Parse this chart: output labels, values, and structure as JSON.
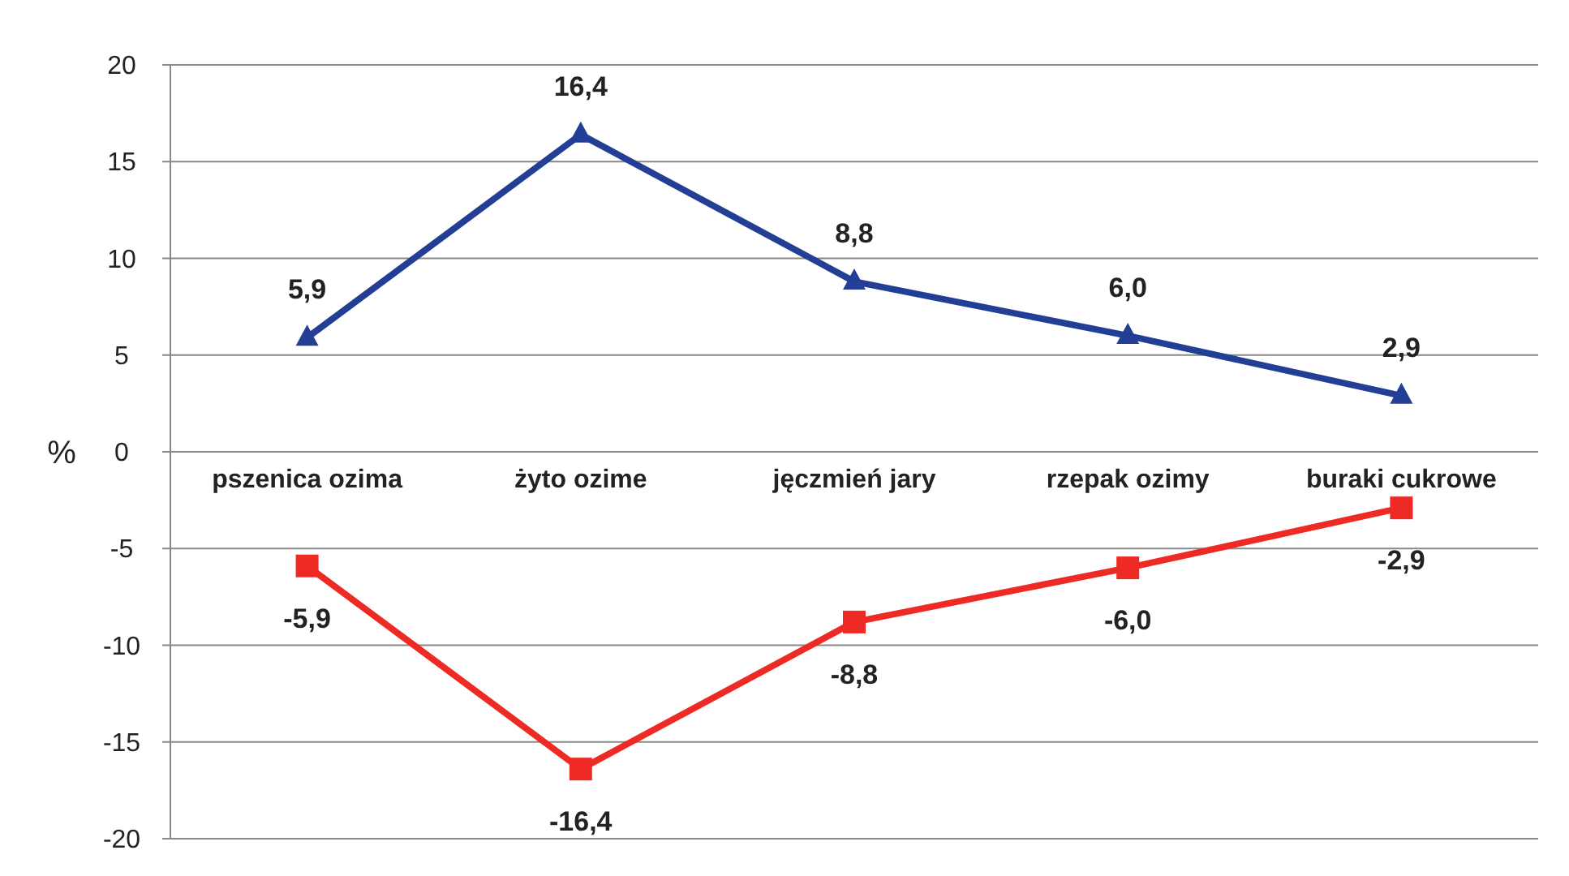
{
  "chart_data": {
    "type": "line",
    "ylabel": "%",
    "categories": [
      "pszenica ozima",
      "żyto ozime",
      "jęczmień jary",
      "rzepak ozimy",
      "buraki cukrowe"
    ],
    "series": [
      {
        "color": "#233f95",
        "marker": "triangle",
        "values": [
          5.9,
          16.4,
          8.8,
          6.0,
          2.9
        ],
        "value_labels": [
          "5,9",
          "16,4",
          "8,8",
          "6,0",
          "2,9"
        ]
      },
      {
        "color": "#ee2a24",
        "marker": "square",
        "values": [
          -5.9,
          -16.4,
          -8.8,
          -6.0,
          -2.9
        ],
        "value_labels": [
          "-5,9",
          "-16,4",
          "-8,8",
          "-6,0",
          "-2,9"
        ]
      }
    ],
    "ylim": [
      -20,
      20
    ],
    "yticks": [
      -20,
      -15,
      -10,
      -5,
      0,
      5,
      10,
      15,
      20
    ],
    "grid": "y"
  }
}
